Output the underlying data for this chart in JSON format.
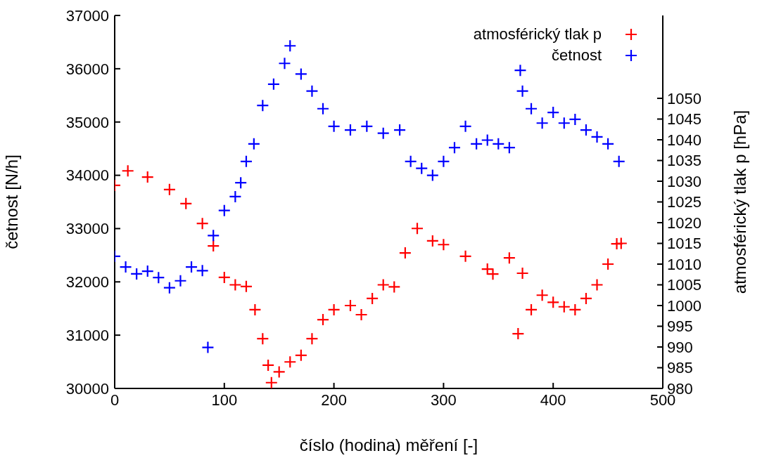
{
  "chart_data": {
    "type": "scatter",
    "xlabel": "číslo (hodina) měření [-]",
    "ylabel": "četnost [N/h]",
    "y2label": "atmosférický tlak p [hPa]",
    "xlim": [
      0,
      500
    ],
    "xticks": [
      0,
      100,
      200,
      300,
      400,
      500
    ],
    "ylim": [
      30000,
      37000
    ],
    "yticks": [
      30000,
      31000,
      32000,
      33000,
      34000,
      35000,
      36000,
      37000
    ],
    "y2lim": [
      980,
      1070
    ],
    "y2ticks": [
      980,
      985,
      990,
      995,
      1000,
      1005,
      1010,
      1015,
      1020,
      1025,
      1030,
      1035,
      1040,
      1045,
      1050
    ],
    "legend": "top right",
    "marker": "cross",
    "series": [
      {
        "name": "atmosférický tlak p",
        "color": "#ff0000",
        "axis": "y2",
        "x": [
          0,
          12,
          30,
          50,
          65,
          80,
          90,
          100,
          110,
          120,
          128,
          135,
          140,
          143,
          150,
          160,
          170,
          180,
          190,
          200,
          215,
          225,
          235,
          245,
          255,
          265,
          276,
          290,
          300,
          320,
          340,
          345,
          360,
          372,
          368,
          380,
          390,
          400,
          410,
          420,
          430,
          440,
          450,
          458,
          462
        ],
        "values": [
          1029,
          1032.5,
          1031,
          1028,
          1024.6,
          1019.8,
          1014.4,
          1006.8,
          1005,
          1004.6,
          999,
          992,
          985.6,
          981.4,
          984,
          986.4,
          988,
          992,
          996.6,
          999,
          1000,
          997.8,
          1001.7,
          1005,
          1004.5,
          1012.7,
          1018.6,
          1015.6,
          1014.7,
          1011.9,
          1008.8,
          1007.6,
          1011.5,
          1007.8,
          993.2,
          999,
          1002.5,
          1000.8,
          999.7,
          999,
          1001.7,
          1005,
          1010,
          1014.9,
          1015
        ]
      },
      {
        "name": "četnost",
        "color": "#0000ff",
        "x": [
          0,
          10,
          20,
          30,
          40,
          50,
          60,
          70,
          80,
          85,
          90,
          100,
          110,
          115,
          120,
          127,
          135,
          145,
          155,
          160,
          170,
          180,
          190,
          200,
          215,
          230,
          245,
          260,
          270,
          280,
          290,
          300,
          310,
          320,
          330,
          340,
          350,
          360,
          370,
          372,
          380,
          390,
          400,
          410,
          420,
          430,
          440,
          450,
          460
        ],
        "values": [
          32480,
          32280,
          32150,
          32200,
          32080,
          31890,
          32020,
          32280,
          32210,
          30770,
          32870,
          33340,
          33600,
          33860,
          34260,
          34590,
          35310,
          35710,
          36100,
          36430,
          35900,
          35580,
          35250,
          34920,
          34850,
          34920,
          34790,
          34850,
          34260,
          34130,
          34000,
          34260,
          34520,
          34920,
          34590,
          34660,
          34590,
          34520,
          35970,
          35580,
          35250,
          34980,
          35180,
          34980,
          35050,
          34850,
          34720,
          34590,
          34260
        ]
      }
    ]
  }
}
